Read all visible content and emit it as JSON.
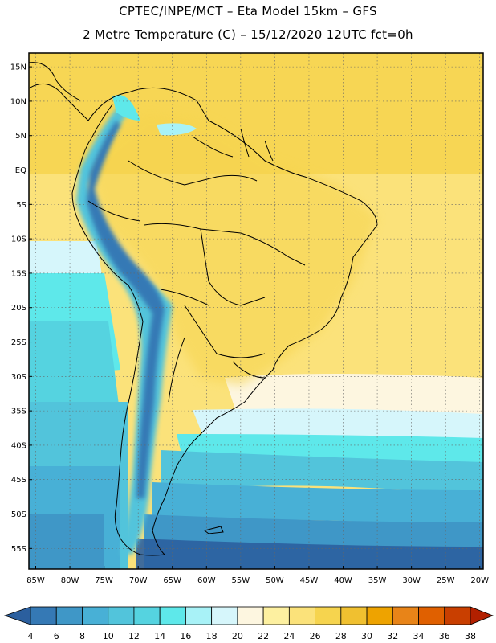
{
  "header": {
    "line1": "CPTEC/INPE/MCT –  Eta Model 15km – GFS",
    "line2": "2 Metre Temperature (C) – 15/12/2020 12UTC fct=0h"
  },
  "map": {
    "lon_range": [
      -86,
      -19.5
    ],
    "lat_range": [
      -58,
      17
    ],
    "lat_ticks": [
      "15N",
      "10N",
      "5N",
      "EQ",
      "5S",
      "10S",
      "15S",
      "20S",
      "25S",
      "30S",
      "35S",
      "40S",
      "45S",
      "50S",
      "55S"
    ],
    "lat_values": [
      15,
      10,
      5,
      0,
      -5,
      -10,
      -15,
      -20,
      -25,
      -30,
      -35,
      -40,
      -45,
      -50,
      -55
    ],
    "lon_ticks": [
      "85W",
      "80W",
      "75W",
      "70W",
      "65W",
      "60W",
      "55W",
      "50W",
      "45W",
      "40W",
      "35W",
      "30W",
      "25W",
      "20W"
    ],
    "lon_values": [
      -85,
      -80,
      -75,
      -70,
      -65,
      -60,
      -55,
      -50,
      -45,
      -40,
      -35,
      -30,
      -25,
      -20
    ]
  },
  "colorbar": {
    "labels": [
      "4",
      "6",
      "8",
      "10",
      "12",
      "14",
      "16",
      "18",
      "20",
      "22",
      "24",
      "26",
      "28",
      "30",
      "32",
      "34",
      "36",
      "38"
    ],
    "colors": [
      "#2b5f9e",
      "#3579b5",
      "#3f97c7",
      "#48b0d6",
      "#52c4db",
      "#55d3e0",
      "#5ee8ea",
      "#a8f2f7",
      "#d6f6fb",
      "#fdf6e0",
      "#fdf0a0",
      "#fbe27a",
      "#f6d44e",
      "#f0c030",
      "#eea300",
      "#e88418",
      "#e06000",
      "#c93f00",
      "#b22000"
    ]
  }
}
